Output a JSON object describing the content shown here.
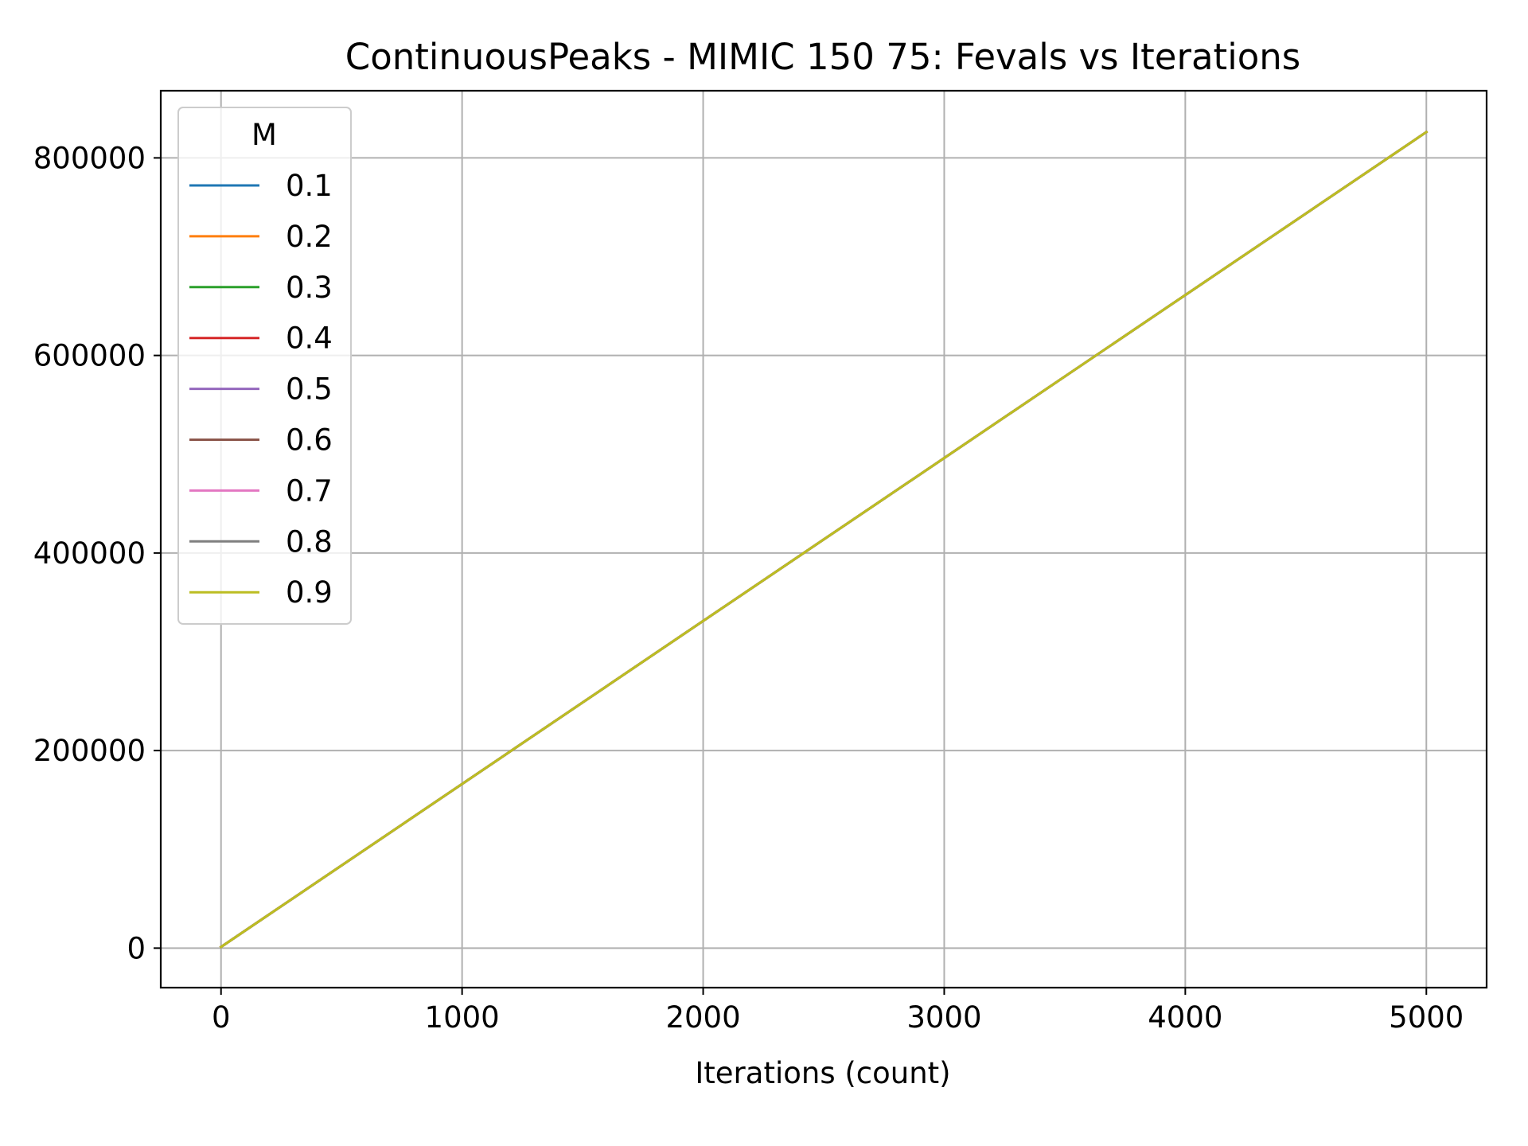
{
  "chart_data": {
    "type": "line",
    "title": "ContinuousPeaks - MIMIC 150 75: Fevals vs Iterations",
    "xlabel": "Iterations (count)",
    "ylabel": "",
    "xlim": [
      -250,
      5250
    ],
    "ylim": [
      -40000,
      868000
    ],
    "xticks": [
      0,
      1000,
      2000,
      3000,
      4000,
      5000
    ],
    "yticks": [
      0,
      200000,
      400000,
      600000,
      800000
    ],
    "xtick_labels": [
      "0",
      "1000",
      "2000",
      "3000",
      "4000",
      "5000"
    ],
    "ytick_labels": [
      "0",
      "200000",
      "400000",
      "600000",
      "800000"
    ],
    "grid": true,
    "legend": {
      "title": "M",
      "placement": "top-left"
    },
    "x": [
      0,
      1000,
      2000,
      3000,
      4000,
      5000
    ],
    "series": [
      {
        "name": "0.1",
        "color": "#1f77b4",
        "values": [
          1150,
          166150,
          331150,
          496150,
          661150,
          826150
        ]
      },
      {
        "name": "0.2",
        "color": "#ff7f0e",
        "values": [
          1150,
          166150,
          331150,
          496150,
          661150,
          826150
        ]
      },
      {
        "name": "0.3",
        "color": "#2ca02c",
        "values": [
          1150,
          166150,
          331150,
          496150,
          661150,
          826150
        ]
      },
      {
        "name": "0.4",
        "color": "#d62728",
        "values": [
          1150,
          166150,
          331150,
          496150,
          661150,
          826150
        ]
      },
      {
        "name": "0.5",
        "color": "#9467bd",
        "values": [
          1150,
          166150,
          331150,
          496150,
          661150,
          826150
        ]
      },
      {
        "name": "0.6",
        "color": "#8c564b",
        "values": [
          1150,
          166150,
          331150,
          496150,
          661150,
          826150
        ]
      },
      {
        "name": "0.7",
        "color": "#e377c2",
        "values": [
          1150,
          166150,
          331150,
          496150,
          661150,
          826150
        ]
      },
      {
        "name": "0.8",
        "color": "#7f7f7f",
        "values": [
          1150,
          166150,
          331150,
          496150,
          661150,
          826150
        ]
      },
      {
        "name": "0.9",
        "color": "#bcbd22",
        "values": [
          1150,
          166150,
          331150,
          496150,
          661150,
          826150
        ]
      }
    ]
  }
}
